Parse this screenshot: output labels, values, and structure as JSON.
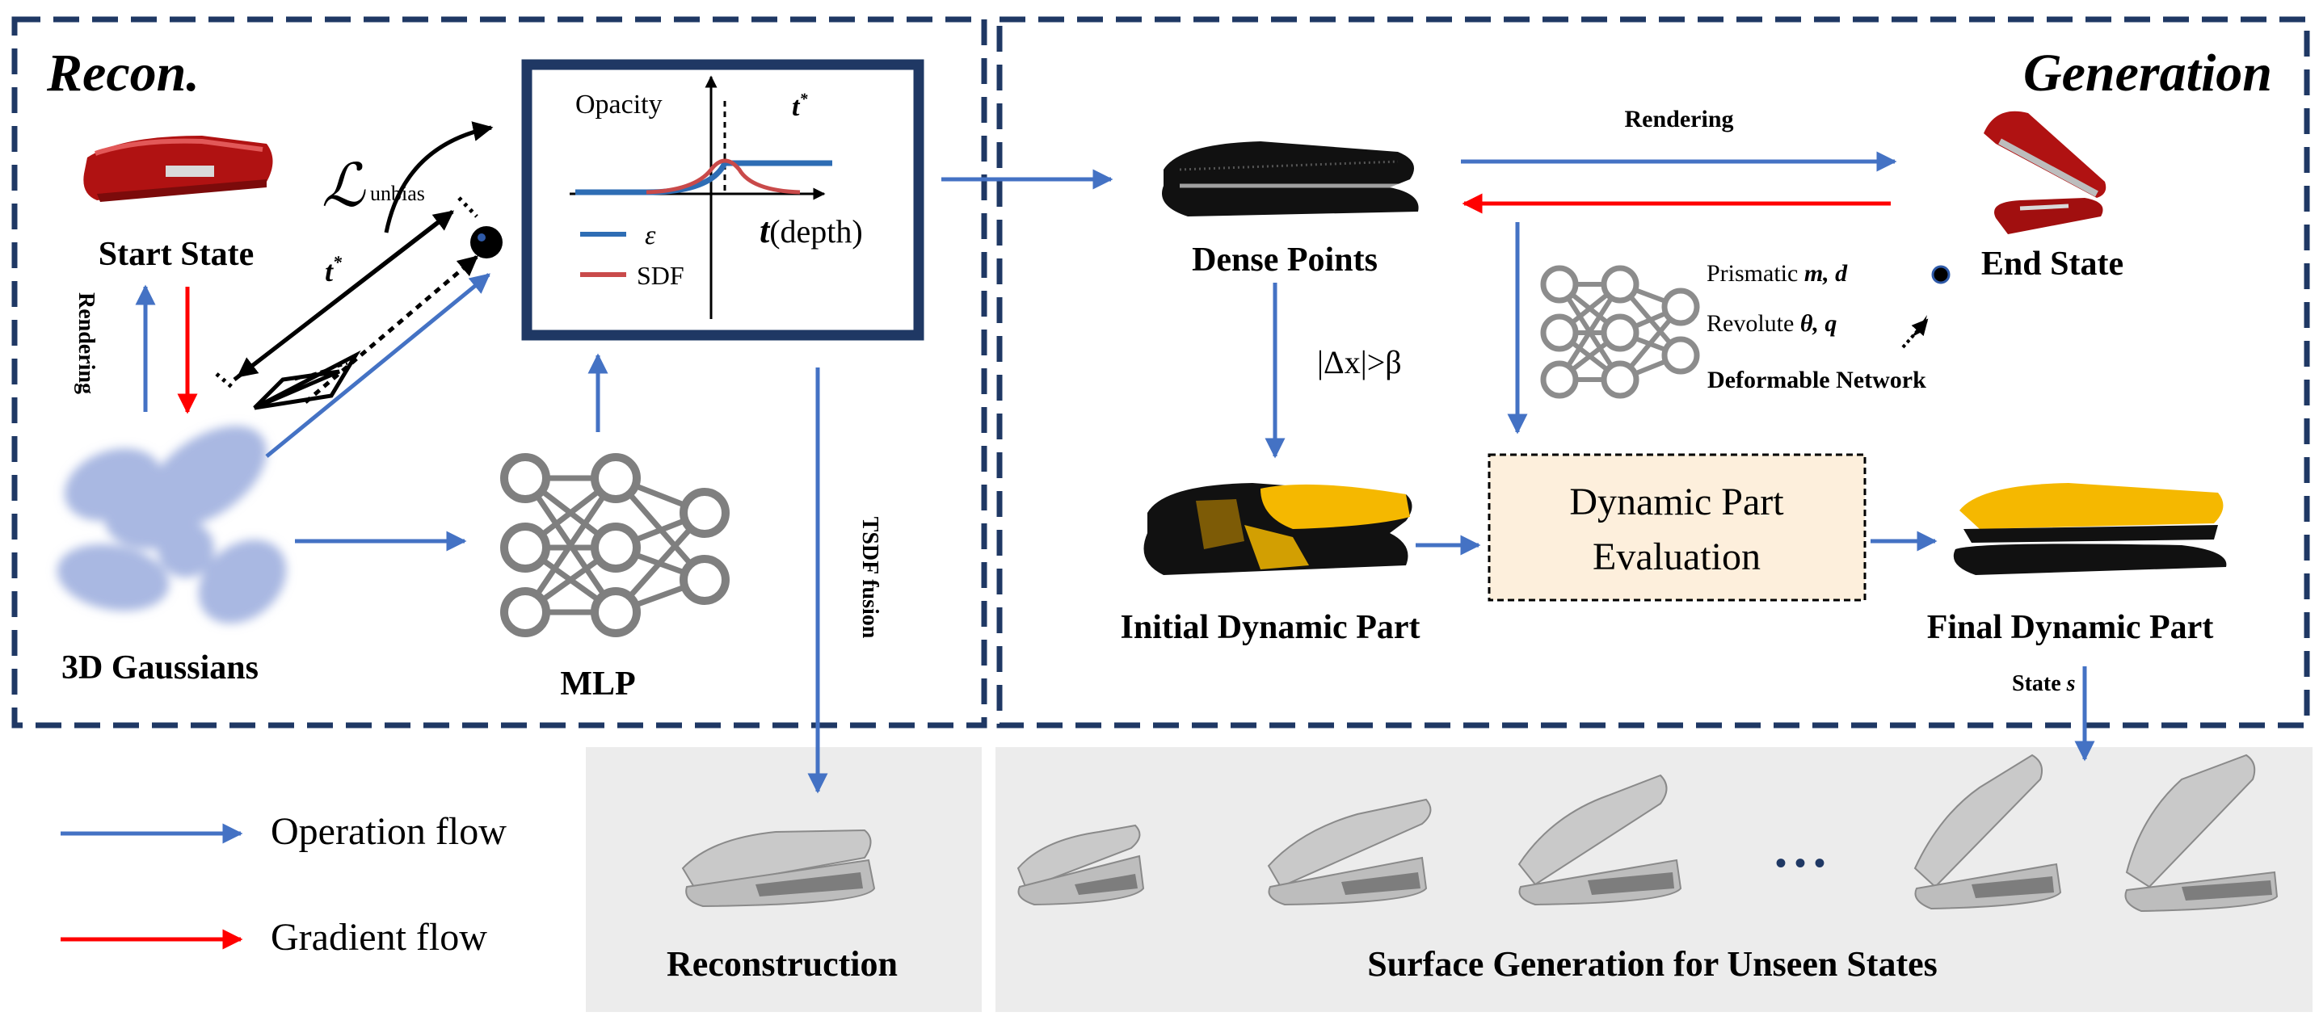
{
  "panels": {
    "recon_title": "Recon.",
    "generation_title": "Generation"
  },
  "recon": {
    "start_state": "Start State",
    "gaussians": "3D Gaussians",
    "mlp": "MLP",
    "rendering": "Rendering",
    "tstar": "t",
    "tstar_sup": "*",
    "loss_main": "ℒ",
    "loss_sub": "unbias",
    "tsdf": "TSDF fusion"
  },
  "inset_plot": {
    "ylabel": "Opacity",
    "tstar": "t",
    "tstar_sup": "*",
    "xlabel_var": "t",
    "xlabel_unit": "(depth)",
    "legend": [
      {
        "label": "ε",
        "color": "#2e6db4"
      },
      {
        "label": "SDF",
        "color": "#c94a4a"
      }
    ]
  },
  "generation": {
    "rendering": "Rendering",
    "dense_points": "Dense Points",
    "end_state": "End State",
    "threshold": "|Δx|>β",
    "prismatic_prefix": "Prismatic ",
    "prismatic_vars": "m, d",
    "revolute_prefix": "Revolute ",
    "revolute_vars": "θ, q",
    "deformable": "Deformable Network",
    "eval_line1": "Dynamic Part",
    "eval_line2": "Evaluation",
    "initial_part": "Initial Dynamic Part",
    "final_part": "Final Dynamic Part",
    "state": "State ",
    "state_var": "s"
  },
  "legend": {
    "operation": "Operation flow",
    "gradient": "Gradient flow"
  },
  "bottom": {
    "reconstruction": "Reconstruction",
    "surface_generation": "Surface Generation for Unseen States",
    "ellipsis": "• • •"
  },
  "colors": {
    "operation": "#4472c4",
    "gradient": "#ff0000",
    "frame": "#1f3864",
    "gaussian": "#a9b8e2",
    "dynamic": "#f5b800",
    "eval_fill": "#fdefdc",
    "stapler": "#b01212"
  }
}
